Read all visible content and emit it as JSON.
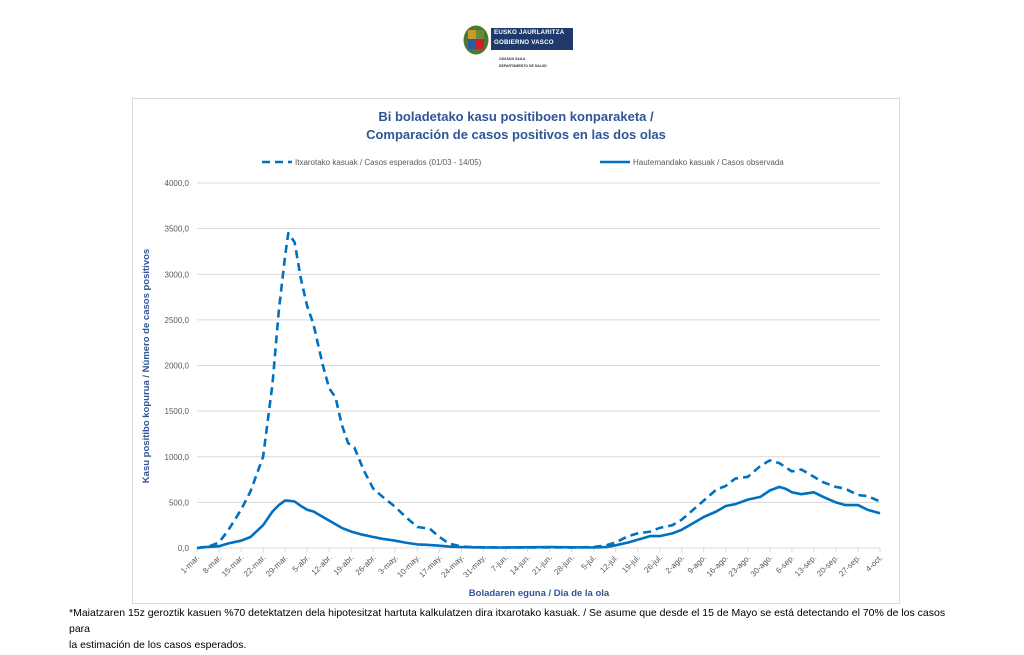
{
  "header": {
    "org_line1": "EUSKO JAURLARITZA",
    "org_line2": "GOBIERNO VASCO",
    "dept_line1": "OSASUN SAILA",
    "dept_line2": "DEPARTAMENTO DE SALUD"
  },
  "colors": {
    "series": "#0070c0",
    "title": "#2f5597",
    "grid": "#d9d9d9",
    "tick_text": "#595959"
  },
  "chart_data": {
    "type": "line",
    "title": "Bi boladetako kasu positiboen konparaketa /",
    "subtitle": "Comparación de casos positivos en las dos olas",
    "xlabel": "Boladaren eguna / Dia de la ola",
    "ylabel": "Kasu positibo kopurua / Número de casos positivos",
    "ylim": [
      0,
      4000
    ],
    "yticks": [
      "0,0",
      "500,0",
      "1000,0",
      "1500,0",
      "2000,0",
      "2500,0",
      "3000,0",
      "3500,0",
      "4000,0"
    ],
    "ytick_values": [
      0,
      500,
      1000,
      1500,
      2000,
      2500,
      3000,
      3500,
      4000
    ],
    "grid": true,
    "legend_position": "top",
    "categories": [
      "1-mar.",
      "8-mar.",
      "15-mar.",
      "22-mar.",
      "29-mar.",
      "5-abr.",
      "12-abr.",
      "19-abr.",
      "26-abr.",
      "3-may.",
      "10-may.",
      "17-may.",
      "24-may.",
      "31-may.",
      "7-jun.",
      "14-jun.",
      "21-jun.",
      "28-jun.",
      "5-jul.",
      "12-jul.",
      "19-jul.",
      "26-jul.",
      "2-ago.",
      "9-ago.",
      "16-ago.",
      "23-ago.",
      "30-ago.",
      "6-sep.",
      "13-sep.",
      "20-sep.",
      "27-sep.",
      "4-oct."
    ],
    "series": [
      {
        "name": "Itxarotako kasuak / Casos esperados (01/03 - 14/05)",
        "style": "dashed",
        "x_days": [
          0,
          4,
          7,
          10,
          14,
          17,
          21,
          24,
          26,
          28,
          29,
          31,
          33,
          35,
          37,
          40,
          42,
          44,
          46,
          48,
          50,
          53,
          56,
          59,
          63,
          66,
          70,
          72,
          74,
          76,
          77,
          80,
          84,
          88,
          91,
          98,
          105,
          112,
          119,
          126,
          130,
          133,
          137,
          140,
          144,
          147,
          151,
          154,
          158,
          161,
          165,
          168,
          171,
          175,
          179,
          182,
          185,
          189,
          192,
          196,
          199,
          203,
          206,
          210,
          213,
          217
        ],
        "values": [
          0,
          20,
          60,
          200,
          420,
          620,
          1000,
          1800,
          2600,
          3200,
          3450,
          3350,
          2950,
          2650,
          2450,
          2000,
          1750,
          1650,
          1350,
          1150,
          1100,
          850,
          650,
          560,
          450,
          350,
          230,
          220,
          210,
          150,
          120,
          50,
          15,
          10,
          8,
          5,
          5,
          5,
          5,
          10,
          30,
          60,
          130,
          160,
          180,
          220,
          250,
          310,
          430,
          520,
          640,
          680,
          760,
          780,
          900,
          960,
          930,
          840,
          860,
          780,
          720,
          670,
          650,
          580,
          570,
          510
        ]
      },
      {
        "name": "Hautemandako kasuak / Casos observada",
        "style": "solid",
        "x_days": [
          0,
          3,
          7,
          10,
          14,
          17,
          21,
          24,
          26,
          28,
          29,
          31,
          33,
          35,
          37,
          40,
          42,
          44,
          46,
          49,
          52,
          56,
          59,
          63,
          66,
          70,
          73,
          77,
          80,
          84,
          88,
          91,
          98,
          105,
          112,
          119,
          126,
          130,
          133,
          137,
          140,
          144,
          147,
          151,
          154,
          158,
          161,
          165,
          168,
          171,
          175,
          179,
          182,
          185,
          187,
          189,
          192,
          196,
          199,
          203,
          206,
          210,
          213,
          217
        ],
        "values": [
          0,
          10,
          20,
          50,
          80,
          120,
          250,
          400,
          470,
          520,
          520,
          510,
          460,
          420,
          400,
          340,
          300,
          260,
          220,
          180,
          150,
          120,
          100,
          80,
          60,
          40,
          35,
          25,
          15,
          10,
          8,
          5,
          5,
          8,
          10,
          8,
          5,
          10,
          30,
          60,
          90,
          130,
          130,
          160,
          200,
          280,
          340,
          400,
          460,
          480,
          530,
          560,
          630,
          670,
          650,
          610,
          590,
          610,
          560,
          500,
          470,
          470,
          420,
          380
        ]
      }
    ]
  },
  "footnote": {
    "line1": "*Maiatzaren 15z geroztik kasuen %70 detektatzen dela hipotesitzat hartuta kalkulatzen dira itxarotako kasuak. / Se asume que desde el 15 de Mayo se está detectando el 70% de los casos para",
    "line2": "la estimación de los casos esperados."
  }
}
